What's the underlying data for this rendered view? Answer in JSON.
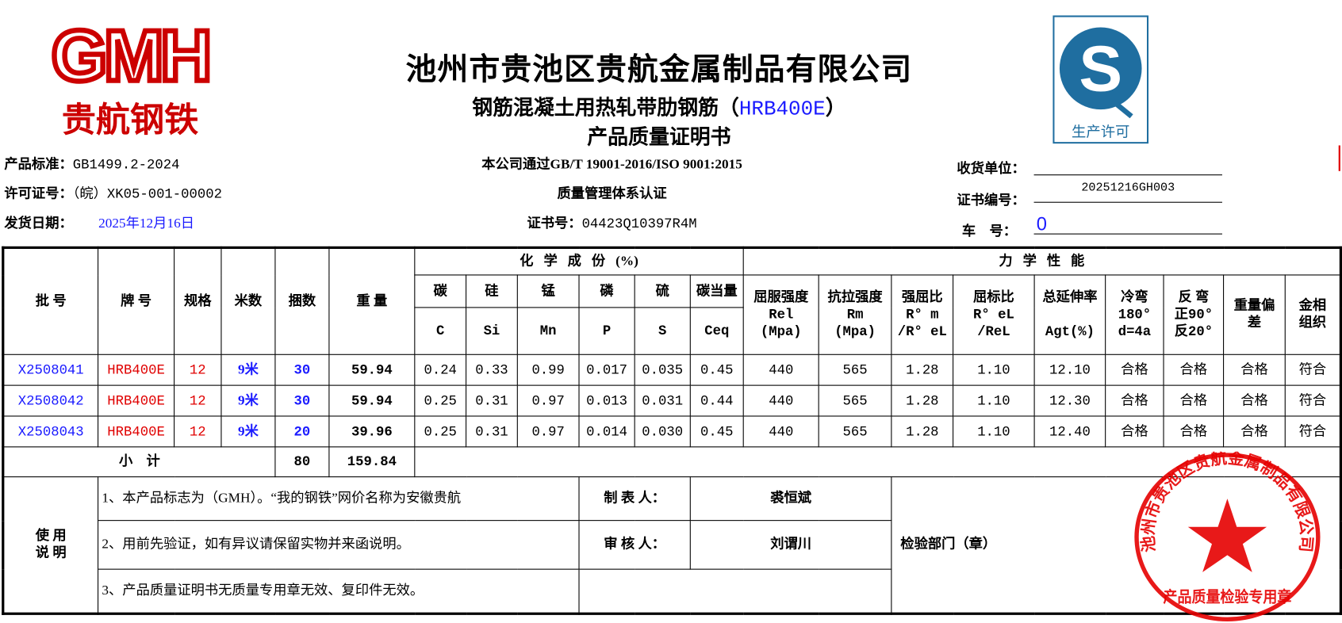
{
  "logo": {
    "letters": "GMH",
    "text": "贵航钢铁",
    "color": "#cc0000"
  },
  "header": {
    "company": "池州市贵池区贵航金属制品有限公司",
    "product_prefix": "钢筋混凝土用热轧带肋钢筋（",
    "product_grade": "HRB400E",
    "product_suffix": "）",
    "doc_title": "产品质量证明书",
    "qs_label": "生产许可",
    "qs_color": "#1f6ea0"
  },
  "info": {
    "standard_label": "产品标准：",
    "standard_value": "GB1499.2-2024",
    "license_label": "许可证号：",
    "license_value": "（皖）XK05-001-00002",
    "ship_date_label": "发货日期：",
    "ship_date_value": "2025年12月16日",
    "iso_line1": "本公司通过GB/T 19001-2016/ISO 9001:2015",
    "iso_line2": "质量管理体系认证",
    "cert_label": "证书号：",
    "cert_value": "04423Q10397R4M",
    "receiver_label": "收货单位：",
    "receiver_value": "",
    "cert_no_label": "证书编号：",
    "cert_no_value": "20251216GH003",
    "vehicle_label": "车    号：",
    "vehicle_value": "0"
  },
  "table": {
    "headers": {
      "batch": "批 号",
      "brand": "牌 号",
      "spec": "规格",
      "length": "米数",
      "bundles": "捆数",
      "weight": "重 量",
      "chem_group": "化   学   成   份   (%)",
      "mech_group": "力   学   性   能",
      "chem_cn": [
        "碳",
        "硅",
        "锰",
        "磷",
        "硫",
        "碳当量"
      ],
      "chem_sym": [
        "C",
        "Si",
        "Mn",
        "P",
        "S",
        "Ceq"
      ],
      "mech": [
        {
          "l1": "屈服强度",
          "l2": "Rel",
          "l3": "(Mpa)"
        },
        {
          "l1": "抗拉强度",
          "l2": "Rm",
          "l3": "(Mpa)"
        },
        {
          "l1": "强屈比",
          "l2": "R° m",
          "l3": "/R° eL"
        },
        {
          "l1": "屈标比",
          "l2": "R° eL",
          "l3": "/ReL"
        },
        {
          "l1": "总延伸率",
          "l2": "",
          "l3": "Agt(%)"
        },
        {
          "l1": "冷弯",
          "l2": "180°",
          "l3": "d=4a"
        },
        {
          "l1": "反 弯",
          "l2": "正90°",
          "l3": "反20°"
        },
        {
          "l1": "重量偏",
          "l2": "差",
          "l3": ""
        },
        {
          "l1": "金相",
          "l2": "组织",
          "l3": ""
        }
      ]
    },
    "rows": [
      {
        "batch": "X2508041",
        "brand": "HRB400E",
        "spec": "12",
        "length": "9米",
        "bundles": "30",
        "weight": "59.94",
        "C": "0.24",
        "Si": "0.33",
        "Mn": "0.99",
        "P": "0.017",
        "S": "0.035",
        "Ceq": "0.45",
        "rel": "440",
        "rm": "565",
        "ratio1": "1.28",
        "ratio2": "1.10",
        "agt": "12.10",
        "cold_bend": "合格",
        "rev_bend": "合格",
        "weight_dev": "合格",
        "metallo": "符合"
      },
      {
        "batch": "X2508042",
        "brand": "HRB400E",
        "spec": "12",
        "length": "9米",
        "bundles": "30",
        "weight": "59.94",
        "C": "0.25",
        "Si": "0.31",
        "Mn": "0.97",
        "P": "0.013",
        "S": "0.031",
        "Ceq": "0.44",
        "rel": "440",
        "rm": "565",
        "ratio1": "1.28",
        "ratio2": "1.10",
        "agt": "12.30",
        "cold_bend": "合格",
        "rev_bend": "合格",
        "weight_dev": "合格",
        "metallo": "符合"
      },
      {
        "batch": "X2508043",
        "brand": "HRB400E",
        "spec": "12",
        "length": "9米",
        "bundles": "20",
        "weight": "39.96",
        "C": "0.25",
        "Si": "0.31",
        "Mn": "0.97",
        "P": "0.014",
        "S": "0.030",
        "Ceq": "0.45",
        "rel": "440",
        "rm": "565",
        "ratio1": "1.28",
        "ratio2": "1.10",
        "agt": "12.40",
        "cold_bend": "合格",
        "rev_bend": "合格",
        "weight_dev": "合格",
        "metallo": "符合"
      }
    ],
    "subtotal": {
      "label": "小    计",
      "bundles": "80",
      "weight": "159.84"
    }
  },
  "notes": {
    "label1": "使 用",
    "label2": "说 明",
    "items": [
      "1、本产品标志为（GMH）。“我的钢铁”网价名称为安徽贵航",
      "2、用前先验证，如有异议请保留实物并来函说明。",
      "3、产品质量证明书无质量专用章无效、复印件无效。"
    ],
    "maker_label": "制 表 人：",
    "maker_value": "裘恒斌",
    "reviewer_label": "审 核 人：",
    "reviewer_value": "刘谓川",
    "inspection_label": "检验部门（章）"
  },
  "stamp": {
    "ring_text": "池州市贵池区贵航金属制品有限公司",
    "bottom_text": "产品质量检验专用章",
    "color": "#e60000"
  }
}
